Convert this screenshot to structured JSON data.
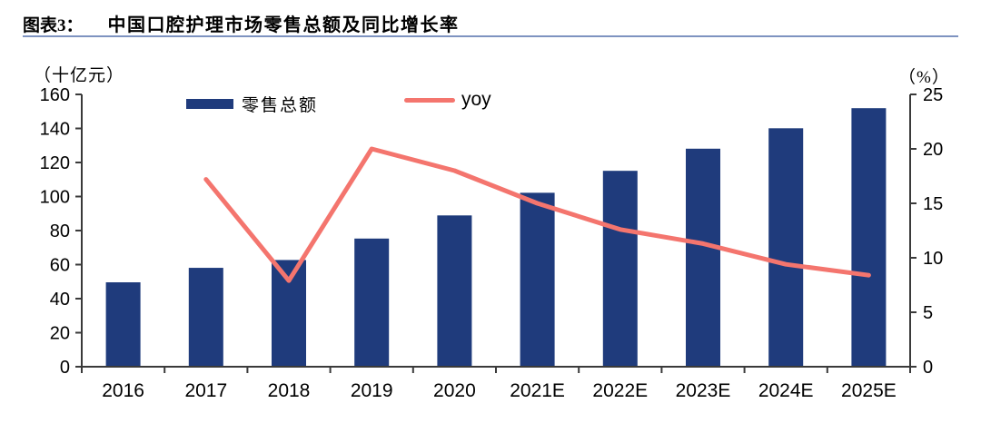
{
  "figure": {
    "label": "图表3：",
    "title": "中国口腔护理市场零售总额及同比增长率"
  },
  "chart_data": {
    "type": "bar",
    "subtype": "bar+line dual axis",
    "title": "中国口腔护理市场零售总额及同比增长率",
    "categories": [
      "2016",
      "2017",
      "2018",
      "2019",
      "2020",
      "2021E",
      "2022E",
      "2023E",
      "2024E",
      "2025E"
    ],
    "series": [
      {
        "name": "零售总额",
        "type": "bar",
        "axis": "left",
        "color": "#1F3B7C",
        "values": [
          49.6,
          58.1,
          62.7,
          75.3,
          88.9,
          102.2,
          115.1,
          128.1,
          140.1,
          151.9
        ]
      },
      {
        "name": "yoy",
        "type": "line",
        "axis": "right",
        "color": "#F4756E",
        "values": [
          null,
          17.2,
          7.9,
          20.0,
          18.0,
          15.0,
          12.6,
          11.3,
          9.4,
          8.4
        ]
      }
    ],
    "left_axis": {
      "unit_label": "（十亿元）",
      "range": [
        0,
        160
      ],
      "ticks": [
        0,
        20,
        40,
        60,
        80,
        100,
        120,
        140,
        160
      ]
    },
    "right_axis": {
      "unit_label": "（%）",
      "range": [
        0,
        25
      ],
      "ticks": [
        0,
        5,
        10,
        15,
        20,
        25
      ]
    },
    "legend": [
      {
        "label": "零售总额"
      },
      {
        "label": "yoy"
      }
    ],
    "legend_position": "top",
    "grid": false
  },
  "colors": {
    "title_rule": "#7E93C0",
    "axis": "#3A3A3A",
    "text": "#000000"
  }
}
